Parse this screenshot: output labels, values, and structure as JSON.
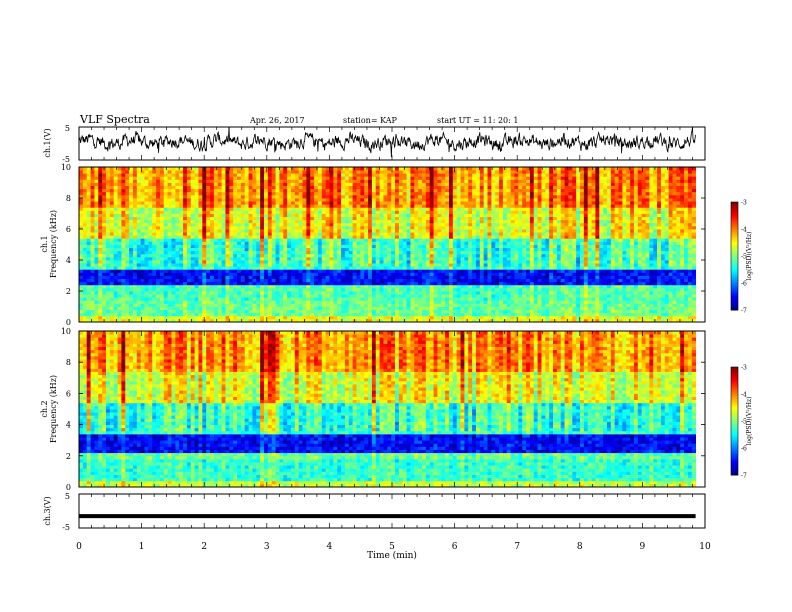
{
  "header": {
    "title": "VLF Spectra",
    "date": "Apr. 26, 2017",
    "station": "station= KAP",
    "start": "start  UT =   11: 20: 1"
  },
  "chart_data": [
    {
      "type": "line",
      "name": "ch1-waveform",
      "ylabel": "ch.1(V)",
      "ylim": [
        -5,
        5
      ],
      "yticks": [
        "5",
        "-5"
      ],
      "xlim": [
        0,
        10
      ],
      "level": 0.5,
      "amplitude": 2.0,
      "line_color": "#000000"
    },
    {
      "type": "heatmap",
      "name": "ch1-spectrogram",
      "ylabel_top": "ch.1",
      "ylabel": "Frequency  (kHz)",
      "ylim": [
        0,
        10
      ],
      "yticks": [
        "0",
        "2",
        "4",
        "6",
        "8",
        "10"
      ],
      "xlim": [
        0,
        9.85
      ],
      "colorbar": {
        "label": "log(PSD)(V²/Hz)",
        "range": [
          -7,
          -3
        ],
        "ticks": [
          "-3",
          "-4",
          "-5",
          "-6",
          "-7"
        ]
      },
      "bands": [
        {
          "freq": [
            0,
            0.5
          ],
          "value": -4.6
        },
        {
          "freq": [
            0.5,
            1.5
          ],
          "value": -5.1
        },
        {
          "freq": [
            1.5,
            2.5
          ],
          "value": -5.2
        },
        {
          "freq": [
            2.5,
            3.5
          ],
          "value": -6.5
        },
        {
          "freq": [
            3.5,
            5.5
          ],
          "value": -5.3
        },
        {
          "freq": [
            5.5,
            7.5
          ],
          "value": -4.6
        },
        {
          "freq": [
            7.5,
            10
          ],
          "value": -4.1
        }
      ]
    },
    {
      "type": "heatmap",
      "name": "ch2-spectrogram",
      "ylabel_top": "ch.2",
      "ylabel": "Frequency  (kHz)",
      "ylim": [
        0,
        10
      ],
      "yticks": [
        "0",
        "2",
        "4",
        "6",
        "8",
        "10"
      ],
      "xlim": [
        0,
        9.85
      ],
      "colorbar": {
        "label": "log(PSD)(V²/Hz)",
        "range": [
          -7,
          -3
        ],
        "ticks": [
          "-3",
          "-4",
          "-5",
          "-6",
          "-7"
        ]
      },
      "bands": [
        {
          "freq": [
            0,
            0.5
          ],
          "value": -4.7
        },
        {
          "freq": [
            0.5,
            1.8
          ],
          "value": -5.3
        },
        {
          "freq": [
            1.8,
            2.3
          ],
          "value": -5.1
        },
        {
          "freq": [
            2.3,
            3.5
          ],
          "value": -6.5
        },
        {
          "freq": [
            3.5,
            5.5
          ],
          "value": -5.3
        },
        {
          "freq": [
            5.5,
            7.5
          ],
          "value": -4.6
        },
        {
          "freq": [
            7.5,
            10
          ],
          "value": -4.1
        }
      ]
    },
    {
      "type": "line",
      "name": "ch3-waveform",
      "ylabel": "ch.3(V)",
      "ylim": [
        -5,
        5
      ],
      "yticks": [
        "5",
        "-5"
      ],
      "xlim": [
        0,
        10
      ],
      "level": -1.5,
      "amplitude": 0.1,
      "line_color": "#000000"
    }
  ],
  "xaxis": {
    "label": "Time  (min)",
    "ticks": [
      "0",
      "1",
      "2",
      "3",
      "4",
      "5",
      "6",
      "7",
      "8",
      "9",
      "10"
    ],
    "range": [
      0,
      10
    ]
  }
}
